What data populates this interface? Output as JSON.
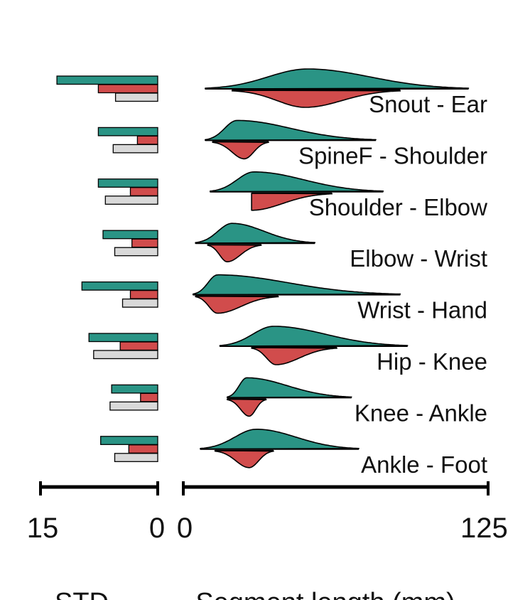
{
  "chart_data": [
    {
      "type": "bar",
      "xlabel": "STD",
      "xlim": [
        15,
        0
      ],
      "x_ticks": [
        "15",
        "0"
      ],
      "categories": [
        "Snout - Ear",
        "SpineF - Shoulder",
        "Shoulder - Elbow",
        "Elbow - Wrist",
        "Wrist - Hand",
        "Hip - Knee",
        "Knee - Ankle",
        "Ankle - Foot"
      ],
      "series": [
        {
          "color": "#2a9485",
          "values": [
            12.9,
            7.6,
            7.6,
            7.0,
            9.7,
            8.8,
            5.9,
            7.3
          ]
        },
        {
          "color": "#d14c4c",
          "values": [
            7.6,
            2.6,
            3.5,
            3.3,
            3.5,
            4.8,
            2.2,
            3.7
          ]
        },
        {
          "color": "#d9d9d9",
          "values": [
            5.4,
            5.7,
            6.7,
            5.5,
            4.5,
            8.2,
            6.1,
            5.5
          ]
        }
      ]
    },
    {
      "type": "area",
      "xlabel": "Segment length (mm)",
      "xlim": [
        0,
        125
      ],
      "x_ticks": [
        "0",
        "125"
      ],
      "categories": [
        "Snout - Ear",
        "SpineF - Shoulder",
        "Shoulder - Elbow",
        "Elbow - Wrist",
        "Wrist - Hand",
        "Hip - Knee",
        "Knee - Ankle",
        "Ankle - Foot"
      ],
      "series": [
        {
          "color": "#2a9485",
          "peaks": [
            51,
            22,
            29,
            20,
            14,
            37,
            26,
            30
          ],
          "ranges": [
            [
              9,
              117
            ],
            [
              9,
              79
            ],
            [
              11,
              82
            ],
            [
              5,
              54
            ],
            [
              4,
              89
            ],
            [
              15,
              92
            ],
            [
              18,
              69
            ],
            [
              7,
              72
            ]
          ]
        },
        {
          "color": "#d14c4c",
          "peaks": [
            50,
            25,
            28,
            18,
            14,
            38,
            27,
            27
          ],
          "ranges": [
            [
              20,
              89
            ],
            [
              12,
              35
            ],
            [
              28,
              61
            ],
            [
              10,
              32
            ],
            [
              5,
              39
            ],
            [
              28,
              63
            ],
            [
              18,
              34
            ],
            [
              13,
              37
            ]
          ]
        }
      ]
    }
  ]
}
